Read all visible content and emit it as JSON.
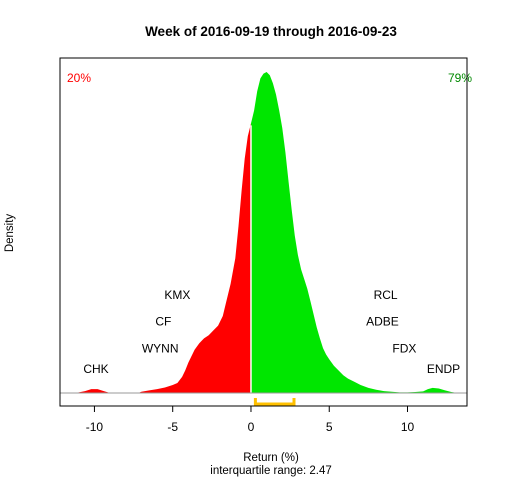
{
  "chart_data": {
    "type": "area",
    "title": "Week of 2016-09-19 through 2016-09-23",
    "xlabel": "Return (%)",
    "ylabel": "Density",
    "subtitle": "interquartile range: 2.47",
    "xlim": [
      -12.2,
      13.8
    ],
    "ylim": [
      0,
      1.0
    ],
    "x_ticks": [
      -10,
      -5,
      0,
      5,
      10
    ],
    "x_tick_labels": [
      "-10",
      "-5",
      "0",
      "5",
      "10"
    ],
    "negative_pct": "20%",
    "positive_pct": "79%",
    "split_at": 0,
    "iqr_range": [
      0.28,
      2.75
    ],
    "colors": {
      "negative": "#ff0000",
      "positive": "#00e600",
      "iqr": "#ffc000",
      "negative_label": "#ff0000",
      "positive_label": "#008800"
    },
    "density": {
      "x": [
        -11.2,
        -10.6,
        -10.2,
        -9.8,
        -9.4,
        -9.0,
        -7.2,
        -7.0,
        -6.5,
        -6.0,
        -5.5,
        -5.0,
        -4.7,
        -4.4,
        -4.2,
        -4.0,
        -3.8,
        -3.6,
        -3.3,
        -3.0,
        -2.7,
        -2.4,
        -2.1,
        -1.8,
        -1.6,
        -1.3,
        -1.0,
        -0.8,
        -0.6,
        -0.4,
        -0.2,
        0.0,
        0.2,
        0.4,
        0.6,
        0.8,
        1.0,
        1.2,
        1.4,
        1.6,
        1.8,
        2.0,
        2.2,
        2.4,
        2.6,
        2.8,
        3.0,
        3.2,
        3.4,
        3.6,
        3.8,
        4.0,
        4.2,
        4.4,
        4.6,
        4.8,
        5.0,
        5.3,
        5.6,
        5.9,
        6.2,
        6.6,
        7.0,
        7.5,
        8.0,
        8.5,
        9.0,
        9.5,
        10.0,
        10.5,
        11.0,
        11.3,
        11.6,
        12.0,
        12.4,
        12.8,
        13.2
      ],
      "y": [
        0.0,
        0.006,
        0.012,
        0.012,
        0.006,
        0.0,
        0.0,
        0.004,
        0.008,
        0.012,
        0.017,
        0.025,
        0.031,
        0.05,
        0.07,
        0.095,
        0.115,
        0.135,
        0.155,
        0.17,
        0.18,
        0.195,
        0.21,
        0.24,
        0.28,
        0.34,
        0.42,
        0.52,
        0.63,
        0.73,
        0.8,
        0.84,
        0.88,
        0.94,
        0.98,
        0.995,
        1.0,
        0.99,
        0.965,
        0.93,
        0.88,
        0.825,
        0.75,
        0.66,
        0.57,
        0.49,
        0.43,
        0.385,
        0.355,
        0.325,
        0.285,
        0.245,
        0.205,
        0.17,
        0.14,
        0.12,
        0.105,
        0.085,
        0.07,
        0.055,
        0.045,
        0.035,
        0.025,
        0.016,
        0.01,
        0.006,
        0.004,
        0.002,
        0.002,
        0.003,
        0.005,
        0.012,
        0.016,
        0.014,
        0.008,
        0.003,
        0.0
      ]
    },
    "stock_labels": [
      {
        "name": "CHK",
        "x": -9.9,
        "level": 0.075
      },
      {
        "name": "KMX",
        "x": -4.7,
        "level": 0.305
      },
      {
        "name": "CF",
        "x": -5.6,
        "level": 0.222
      },
      {
        "name": "WYNN",
        "x": -5.8,
        "level": 0.139
      },
      {
        "name": "RCL",
        "x": 8.6,
        "level": 0.305
      },
      {
        "name": "ADBE",
        "x": 8.4,
        "level": 0.222
      },
      {
        "name": "FDX",
        "x": 9.8,
        "level": 0.139
      },
      {
        "name": "ENDP",
        "x": 12.3,
        "level": 0.075
      }
    ]
  }
}
